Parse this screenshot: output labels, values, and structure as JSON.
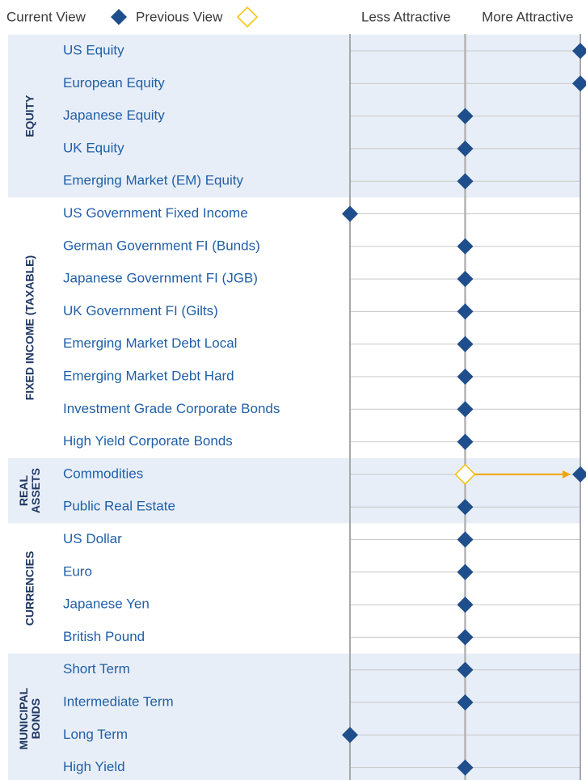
{
  "chart_data": {
    "type": "dot",
    "legend": {
      "current": "Current View",
      "previous": "Previous View"
    },
    "x_labels": [
      "Less Attractive",
      "More Attractive"
    ],
    "xlim": [
      -1,
      1
    ],
    "xticks": [
      -1,
      0,
      1
    ],
    "current_color": "#1f4e8c",
    "previous_color": "#f5c000",
    "arrow_color": "#f0a500",
    "groups": [
      {
        "lines": [
          "EQUITY"
        ],
        "items": [
          {
            "name": "US Equity",
            "value": 1
          },
          {
            "name": "European Equity",
            "value": 1
          },
          {
            "name": "Japanese Equity",
            "value": 0
          },
          {
            "name": "UK Equity",
            "value": 0
          },
          {
            "name": "Emerging Market (EM) Equity",
            "value": 0
          }
        ]
      },
      {
        "lines": [
          "FIXED INCOME (TAXABLE)"
        ],
        "items": [
          {
            "name": "US Government Fixed Income",
            "value": -1
          },
          {
            "name": "German Government FI (Bunds)",
            "value": 0
          },
          {
            "name": "Japanese Government FI (JGB)",
            "value": 0
          },
          {
            "name": "UK Government FI (Gilts)",
            "value": 0
          },
          {
            "name": "Emerging Market Debt Local",
            "value": 0
          },
          {
            "name": "Emerging Market Debt Hard",
            "value": 0
          },
          {
            "name": "Investment Grade Corporate Bonds",
            "value": 0
          },
          {
            "name": "High Yield Corporate Bonds",
            "value": 0
          }
        ]
      },
      {
        "lines": [
          "REAL",
          "ASSETS"
        ],
        "items": [
          {
            "name": "Commodities",
            "value": 1,
            "previous": 0
          },
          {
            "name": "Public Real Estate",
            "value": 0
          }
        ]
      },
      {
        "lines": [
          "CURRENCIES"
        ],
        "items": [
          {
            "name": "US Dollar",
            "value": 0
          },
          {
            "name": "Euro",
            "value": 0
          },
          {
            "name": "Japanese Yen",
            "value": 0
          },
          {
            "name": "British Pound",
            "value": 0
          }
        ]
      },
      {
        "lines": [
          "MUNICIPAL",
          "BONDS"
        ],
        "items": [
          {
            "name": "Short Term",
            "value": 0
          },
          {
            "name": "Intermediate Term",
            "value": 0
          },
          {
            "name": "Long Term",
            "value": -1
          },
          {
            "name": "High Yield",
            "value": 0
          }
        ]
      }
    ]
  }
}
